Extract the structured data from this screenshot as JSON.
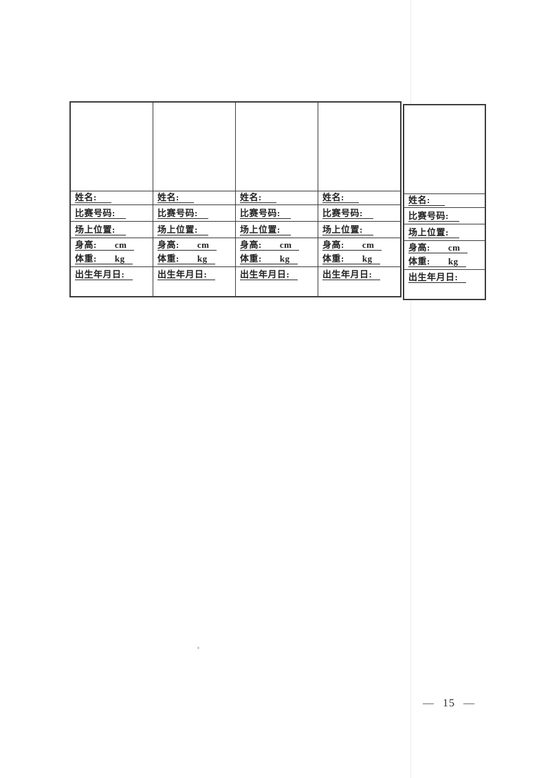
{
  "page": {
    "page_number": "— 15 —",
    "background_color": "#ffffff",
    "ink_color": "#222222",
    "table_line_color": "#3d3d3d"
  },
  "cards": [
    {
      "name_label": "姓名:",
      "number_label": "比赛号码:",
      "position_label": "场上位置:",
      "height_label": "身高:",
      "height_unit": "cm",
      "weight_label": "体重:",
      "weight_unit": "kg",
      "birth_label": "出生年月日:"
    },
    {
      "name_label": "姓名:",
      "number_label": "比赛号码:",
      "position_label": "场上位置:",
      "height_label": "身高:",
      "height_unit": "cm",
      "weight_label": "体重:",
      "weight_unit": "kg",
      "birth_label": "出生年月日:"
    },
    {
      "name_label": "姓名:",
      "number_label": "比赛号码:",
      "position_label": "场上位置:",
      "height_label": "身高:",
      "height_unit": "cm",
      "weight_label": "体重:",
      "weight_unit": "kg",
      "birth_label": "出生年月日:"
    },
    {
      "name_label": "姓名:",
      "number_label": "比赛号码:",
      "position_label": "场上位置:",
      "height_label": "身高:",
      "height_unit": "cm",
      "weight_label": "体重:",
      "weight_unit": "kg",
      "birth_label": "出生年月日:"
    },
    {
      "name_label": "姓名:",
      "number_label": "比赛号码:",
      "position_label": "场上位置:",
      "height_label": "身高:",
      "height_unit": "cm",
      "weight_label": "体重:",
      "weight_unit": "kg",
      "birth_label": "出生年月日:"
    }
  ]
}
